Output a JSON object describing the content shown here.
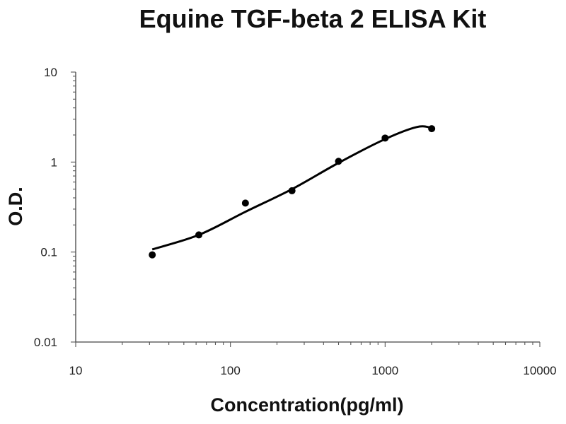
{
  "chart_data": {
    "type": "scatter",
    "title": "Equine TGF-beta 2 ELISA Kit",
    "xlabel": "Concentration(pg/ml)",
    "ylabel": "O.D.",
    "x_scale": "log",
    "y_scale": "log",
    "xlim": [
      10,
      10000
    ],
    "ylim": [
      0.01,
      10
    ],
    "x_ticks": [
      10,
      100,
      1000,
      10000
    ],
    "x_tick_labels": [
      "10",
      "100",
      "1000",
      "10000"
    ],
    "y_ticks": [
      0.01,
      0.1,
      1,
      10
    ],
    "y_tick_labels": [
      "0.01",
      "0.1",
      "1",
      "10"
    ],
    "grid": false,
    "series": [
      {
        "points": [
          {
            "x": 31.25,
            "y": 0.093
          },
          {
            "x": 62.5,
            "y": 0.155
          },
          {
            "x": 125,
            "y": 0.35
          },
          {
            "x": 250,
            "y": 0.48
          },
          {
            "x": 500,
            "y": 1.02
          },
          {
            "x": 1000,
            "y": 1.85
          },
          {
            "x": 2000,
            "y": 2.35
          }
        ],
        "fit_curve": [
          {
            "x": 31.25,
            "y": 0.107
          },
          {
            "x": 62.5,
            "y": 0.155
          },
          {
            "x": 125,
            "y": 0.28
          },
          {
            "x": 250,
            "y": 0.5
          },
          {
            "x": 500,
            "y": 0.98
          },
          {
            "x": 1000,
            "y": 1.8
          },
          {
            "x": 1600,
            "y": 2.45
          },
          {
            "x": 2000,
            "y": 2.4
          }
        ]
      }
    ]
  }
}
